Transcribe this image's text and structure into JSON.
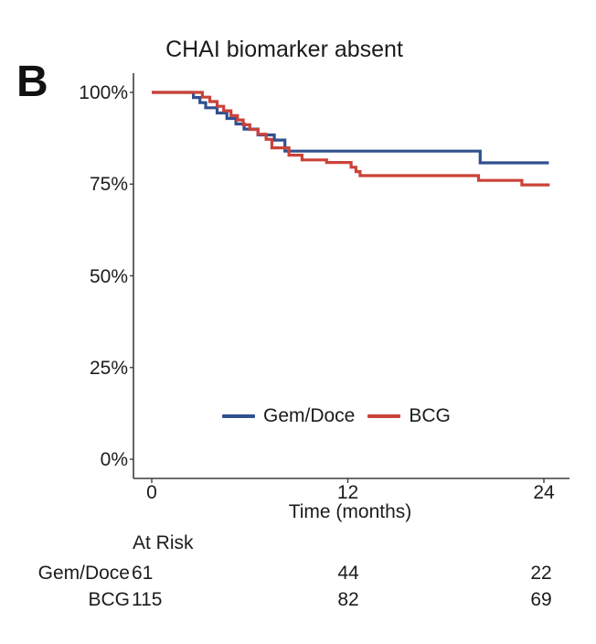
{
  "figure": {
    "panel_label": "B"
  },
  "chart": {
    "title": "CHAI biomarker absent",
    "x_axis": {
      "label": "Time (months)",
      "tick_values": [
        0,
        12,
        24
      ]
    },
    "y_axis": {
      "tick_values": [
        0,
        25,
        50,
        75,
        100
      ],
      "tick_labels": [
        "0%",
        "25%",
        "50%",
        "75%",
        "100%"
      ]
    },
    "legend": [
      {
        "label": "Gem/Doce",
        "color": "#30508f"
      },
      {
        "label": "BCG",
        "color": "#cb4238"
      }
    ]
  },
  "chart_data": {
    "type": "line",
    "subtype": "kaplan-meier-step",
    "title": "CHAI biomarker absent",
    "xlabel": "Time (months)",
    "ylabel": "",
    "xlim": [
      0,
      24
    ],
    "ylim": [
      0,
      100
    ],
    "grid": false,
    "legend_position": "inside-bottom",
    "series": [
      {
        "name": "Gem/Doce",
        "color": "#30508f",
        "start": [
          0,
          100
        ],
        "steps": [
          [
            2.55,
            98.6
          ],
          [
            2.95,
            97.2
          ],
          [
            3.3,
            95.8
          ],
          [
            4.0,
            94.4
          ],
          [
            4.6,
            92.9
          ],
          [
            5.15,
            91.4
          ],
          [
            5.65,
            90.0
          ],
          [
            6.5,
            88.4
          ],
          [
            7.5,
            87.0
          ],
          [
            8.15,
            84.0
          ],
          [
            20.1,
            80.8
          ]
        ],
        "end_t": 24.3
      },
      {
        "name": "BCG",
        "color": "#cb4238",
        "start": [
          0,
          100
        ],
        "steps": [
          [
            3.1,
            98.7
          ],
          [
            3.55,
            97.5
          ],
          [
            4.0,
            96.2
          ],
          [
            4.4,
            95.0
          ],
          [
            4.85,
            93.7
          ],
          [
            5.25,
            92.5
          ],
          [
            5.6,
            91.2
          ],
          [
            6.0,
            89.9
          ],
          [
            6.5,
            88.6
          ],
          [
            7.0,
            87.2
          ],
          [
            7.35,
            84.9
          ],
          [
            8.4,
            82.9
          ],
          [
            9.2,
            81.6
          ],
          [
            10.7,
            80.9
          ],
          [
            12.2,
            79.6
          ],
          [
            12.5,
            78.4
          ],
          [
            12.75,
            77.3
          ],
          [
            20.0,
            76.0
          ],
          [
            22.65,
            74.8
          ]
        ],
        "end_t": 24.35
      }
    ]
  },
  "at_risk": {
    "header": "At Risk",
    "time_points": [
      0,
      12,
      24
    ],
    "rows": [
      {
        "label": "Gem/Doce",
        "counts": [
          61,
          44,
          22
        ]
      },
      {
        "label": "BCG",
        "counts": [
          115,
          82,
          69
        ]
      }
    ]
  }
}
